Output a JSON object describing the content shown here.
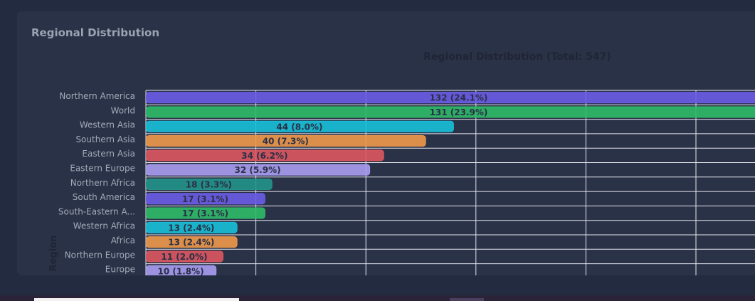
{
  "card": {
    "title": "Regional Distribution"
  },
  "chart_data": {
    "type": "bar",
    "orientation": "horizontal",
    "title": "Regional Distribution (Total: 547)",
    "ylabel": "Region",
    "xlabel": "",
    "grid": true,
    "categories": [
      "Northern America",
      "World",
      "Western Asia",
      "Southern Asia",
      "Eastern Asia",
      "Eastern Europe",
      "Northern Africa",
      "South America",
      "South-Eastern A...",
      "Western Africa",
      "Africa",
      "Northern Europe",
      "Europe"
    ],
    "values": [
      132,
      131,
      44,
      40,
      34,
      32,
      18,
      17,
      17,
      13,
      13,
      11,
      10
    ],
    "labels": [
      "132 (24.1%)",
      "131 (23.9%)",
      "44 (8.0%)",
      "40 (7.3%)",
      "34 (6.2%)",
      "32 (5.9%)",
      "18 (3.3%)",
      "17 (3.1%)",
      "17 (3.1%)",
      "13 (2.4%)",
      "13 (2.4%)",
      "11 (2.0%)",
      "10 (1.8%)"
    ],
    "colors": [
      "#6c5ce7",
      "#2fba68",
      "#18bfd8",
      "#f0994a",
      "#dd5660",
      "#a99cf1",
      "#22938a",
      "#6c5ce7",
      "#2fba68",
      "#18bfd8",
      "#f0994a",
      "#dd5660",
      "#a99cf1"
    ],
    "xlim": [
      0,
      157.5
    ]
  }
}
